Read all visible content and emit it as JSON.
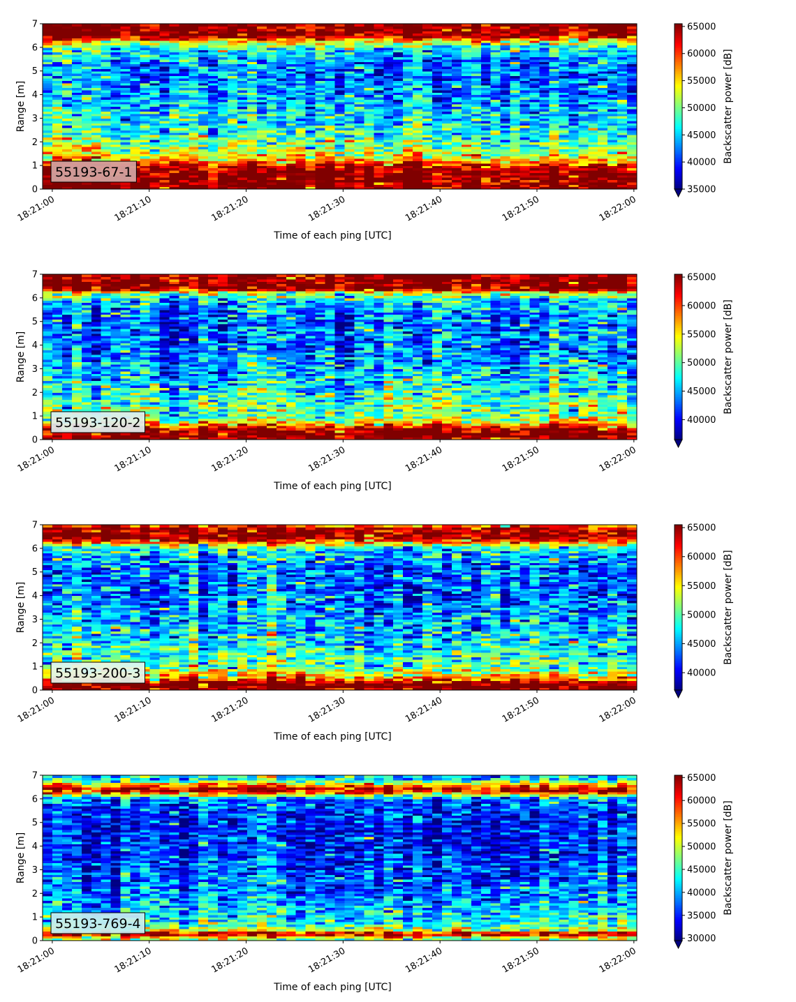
{
  "chart_data": [
    {
      "type": "heatmap",
      "panel_label": "55193-67-1",
      "tag_color": "#d4a6a3",
      "xlabel": "Time of each ping [UTC]",
      "ylabel": "Range [m]",
      "x_ticks": [
        "18:21:00",
        "18:21:10",
        "18:21:20",
        "18:21:30",
        "18:21:40",
        "18:21:50",
        "18:22:00"
      ],
      "x_tick_seconds": [
        0,
        10,
        20,
        30,
        40,
        50,
        60
      ],
      "xlim_seconds": [
        -1,
        60.3
      ],
      "y_ticks": [
        "0",
        "1",
        "2",
        "3",
        "4",
        "5",
        "6",
        "7"
      ],
      "ylim": [
        0,
        7
      ],
      "colorbar": {
        "label": "Backscatter power [dB]",
        "ticks": [
          "35000",
          "40000",
          "45000",
          "50000",
          "55000",
          "60000",
          "65000"
        ],
        "tick_values": [
          35000,
          40000,
          45000,
          50000,
          55000,
          60000,
          65000
        ],
        "range": [
          35000,
          65500
        ],
        "extend": "min",
        "colormap": "jet"
      },
      "profile": [
        {
          "range": 0.0,
          "value": 66000
        },
        {
          "range": 0.3,
          "value": 66000
        },
        {
          "range": 0.7,
          "value": 66000
        },
        {
          "range": 1.0,
          "value": 63000
        },
        {
          "range": 1.3,
          "value": 55000
        },
        {
          "range": 1.7,
          "value": 51000
        },
        {
          "range": 2.2,
          "value": 48000
        },
        {
          "range": 3.0,
          "value": 46000
        },
        {
          "range": 4.0,
          "value": 43500
        },
        {
          "range": 5.0,
          "value": 42000
        },
        {
          "range": 5.6,
          "value": 44000
        },
        {
          "range": 6.0,
          "value": 48000
        },
        {
          "range": 6.3,
          "value": 55000
        },
        {
          "range": 6.5,
          "value": 66000
        },
        {
          "range": 7.0,
          "value": 66000
        }
      ],
      "noise_std": 3500
    },
    {
      "type": "heatmap",
      "panel_label": "55193-120-2",
      "tag_color": "#dfeef0",
      "xlabel": "Time of each ping [UTC]",
      "ylabel": "Range [m]",
      "x_ticks": [
        "18:21:00",
        "18:21:10",
        "18:21:20",
        "18:21:30",
        "18:21:40",
        "18:21:50",
        "18:22:00"
      ],
      "x_tick_seconds": [
        0,
        10,
        20,
        30,
        40,
        50,
        60
      ],
      "xlim_seconds": [
        -1,
        60.3
      ],
      "y_ticks": [
        "0",
        "1",
        "2",
        "3",
        "4",
        "5",
        "6",
        "7"
      ],
      "ylim": [
        0,
        7
      ],
      "colorbar": {
        "label": "Backscatter power [dB]",
        "ticks": [
          "40000",
          "45000",
          "50000",
          "55000",
          "60000",
          "65000"
        ],
        "tick_values": [
          40000,
          45000,
          50000,
          55000,
          60000,
          65000
        ],
        "range": [
          36500,
          65500
        ],
        "extend": "min",
        "colormap": "jet"
      },
      "profile": [
        {
          "range": 0.0,
          "value": 66000
        },
        {
          "range": 0.4,
          "value": 66000
        },
        {
          "range": 0.6,
          "value": 59000
        },
        {
          "range": 0.9,
          "value": 52000
        },
        {
          "range": 1.5,
          "value": 50000
        },
        {
          "range": 2.2,
          "value": 47500
        },
        {
          "range": 3.0,
          "value": 45500
        },
        {
          "range": 4.0,
          "value": 43500
        },
        {
          "range": 5.0,
          "value": 43000
        },
        {
          "range": 5.8,
          "value": 45500
        },
        {
          "range": 6.2,
          "value": 52000
        },
        {
          "range": 6.4,
          "value": 66000
        },
        {
          "range": 7.0,
          "value": 66000
        }
      ],
      "noise_std": 3500
    },
    {
      "type": "heatmap",
      "panel_label": "55193-200-3",
      "tag_color": "#e6f5ec",
      "xlabel": "Time of each ping [UTC]",
      "ylabel": "Range [m]",
      "x_ticks": [
        "18:21:00",
        "18:21:10",
        "18:21:20",
        "18:21:30",
        "18:21:40",
        "18:21:50",
        "18:22:00"
      ],
      "x_tick_seconds": [
        0,
        10,
        20,
        30,
        40,
        50,
        60
      ],
      "xlim_seconds": [
        -1,
        60.3
      ],
      "y_ticks": [
        "0",
        "1",
        "2",
        "3",
        "4",
        "5",
        "6",
        "7"
      ],
      "ylim": [
        0,
        7
      ],
      "colorbar": {
        "label": "Backscatter power [dB]",
        "ticks": [
          "40000",
          "45000",
          "50000",
          "55000",
          "60000",
          "65000"
        ],
        "tick_values": [
          40000,
          45000,
          50000,
          55000,
          60000,
          65000
        ],
        "range": [
          37000,
          65500
        ],
        "extend": "min",
        "colormap": "jet"
      },
      "profile": [
        {
          "range": 0.0,
          "value": 66000
        },
        {
          "range": 0.3,
          "value": 66000
        },
        {
          "range": 0.5,
          "value": 58000
        },
        {
          "range": 0.9,
          "value": 51000
        },
        {
          "range": 1.5,
          "value": 48500
        },
        {
          "range": 2.3,
          "value": 46500
        },
        {
          "range": 3.2,
          "value": 44500
        },
        {
          "range": 4.2,
          "value": 43000
        },
        {
          "range": 5.2,
          "value": 43000
        },
        {
          "range": 6.0,
          "value": 47000
        },
        {
          "range": 6.3,
          "value": 60000
        },
        {
          "range": 6.6,
          "value": 66000
        },
        {
          "range": 6.85,
          "value": 64000
        },
        {
          "range": 7.0,
          "value": 57000
        }
      ],
      "noise_std": 3500
    },
    {
      "type": "heatmap",
      "panel_label": "55193-769-4",
      "tag_color": "#c9ecef",
      "xlabel": "Time of each ping [UTC]",
      "ylabel": "Range [m]",
      "x_ticks": [
        "18:21:00",
        "18:21:10",
        "18:21:20",
        "18:21:30",
        "18:21:40",
        "18:21:50",
        "18:22:00"
      ],
      "x_tick_seconds": [
        0,
        10,
        20,
        30,
        40,
        50,
        60
      ],
      "xlim_seconds": [
        -1,
        60.3
      ],
      "y_ticks": [
        "0",
        "1",
        "2",
        "3",
        "4",
        "5",
        "6",
        "7"
      ],
      "ylim": [
        0,
        7
      ],
      "colorbar": {
        "label": "Backscatter power [dB]",
        "ticks": [
          "30000",
          "35000",
          "40000",
          "45000",
          "50000",
          "55000",
          "60000",
          "65000"
        ],
        "tick_values": [
          30000,
          35000,
          40000,
          45000,
          50000,
          55000,
          60000,
          65000
        ],
        "range": [
          29500,
          65500
        ],
        "extend": "min",
        "colormap": "jet"
      },
      "profile": [
        {
          "range": 0.0,
          "value": 46000
        },
        {
          "range": 0.15,
          "value": 52000
        },
        {
          "range": 0.3,
          "value": 66000
        },
        {
          "range": 0.45,
          "value": 50000
        },
        {
          "range": 0.8,
          "value": 43000
        },
        {
          "range": 1.5,
          "value": 40000
        },
        {
          "range": 2.5,
          "value": 37500
        },
        {
          "range": 3.5,
          "value": 35500
        },
        {
          "range": 4.5,
          "value": 34500
        },
        {
          "range": 5.5,
          "value": 35000
        },
        {
          "range": 6.0,
          "value": 38000
        },
        {
          "range": 6.2,
          "value": 52000
        },
        {
          "range": 6.4,
          "value": 66000
        },
        {
          "range": 6.6,
          "value": 55000
        },
        {
          "range": 6.8,
          "value": 43000
        },
        {
          "range": 7.0,
          "value": 41000
        }
      ],
      "noise_std": 4000
    }
  ]
}
